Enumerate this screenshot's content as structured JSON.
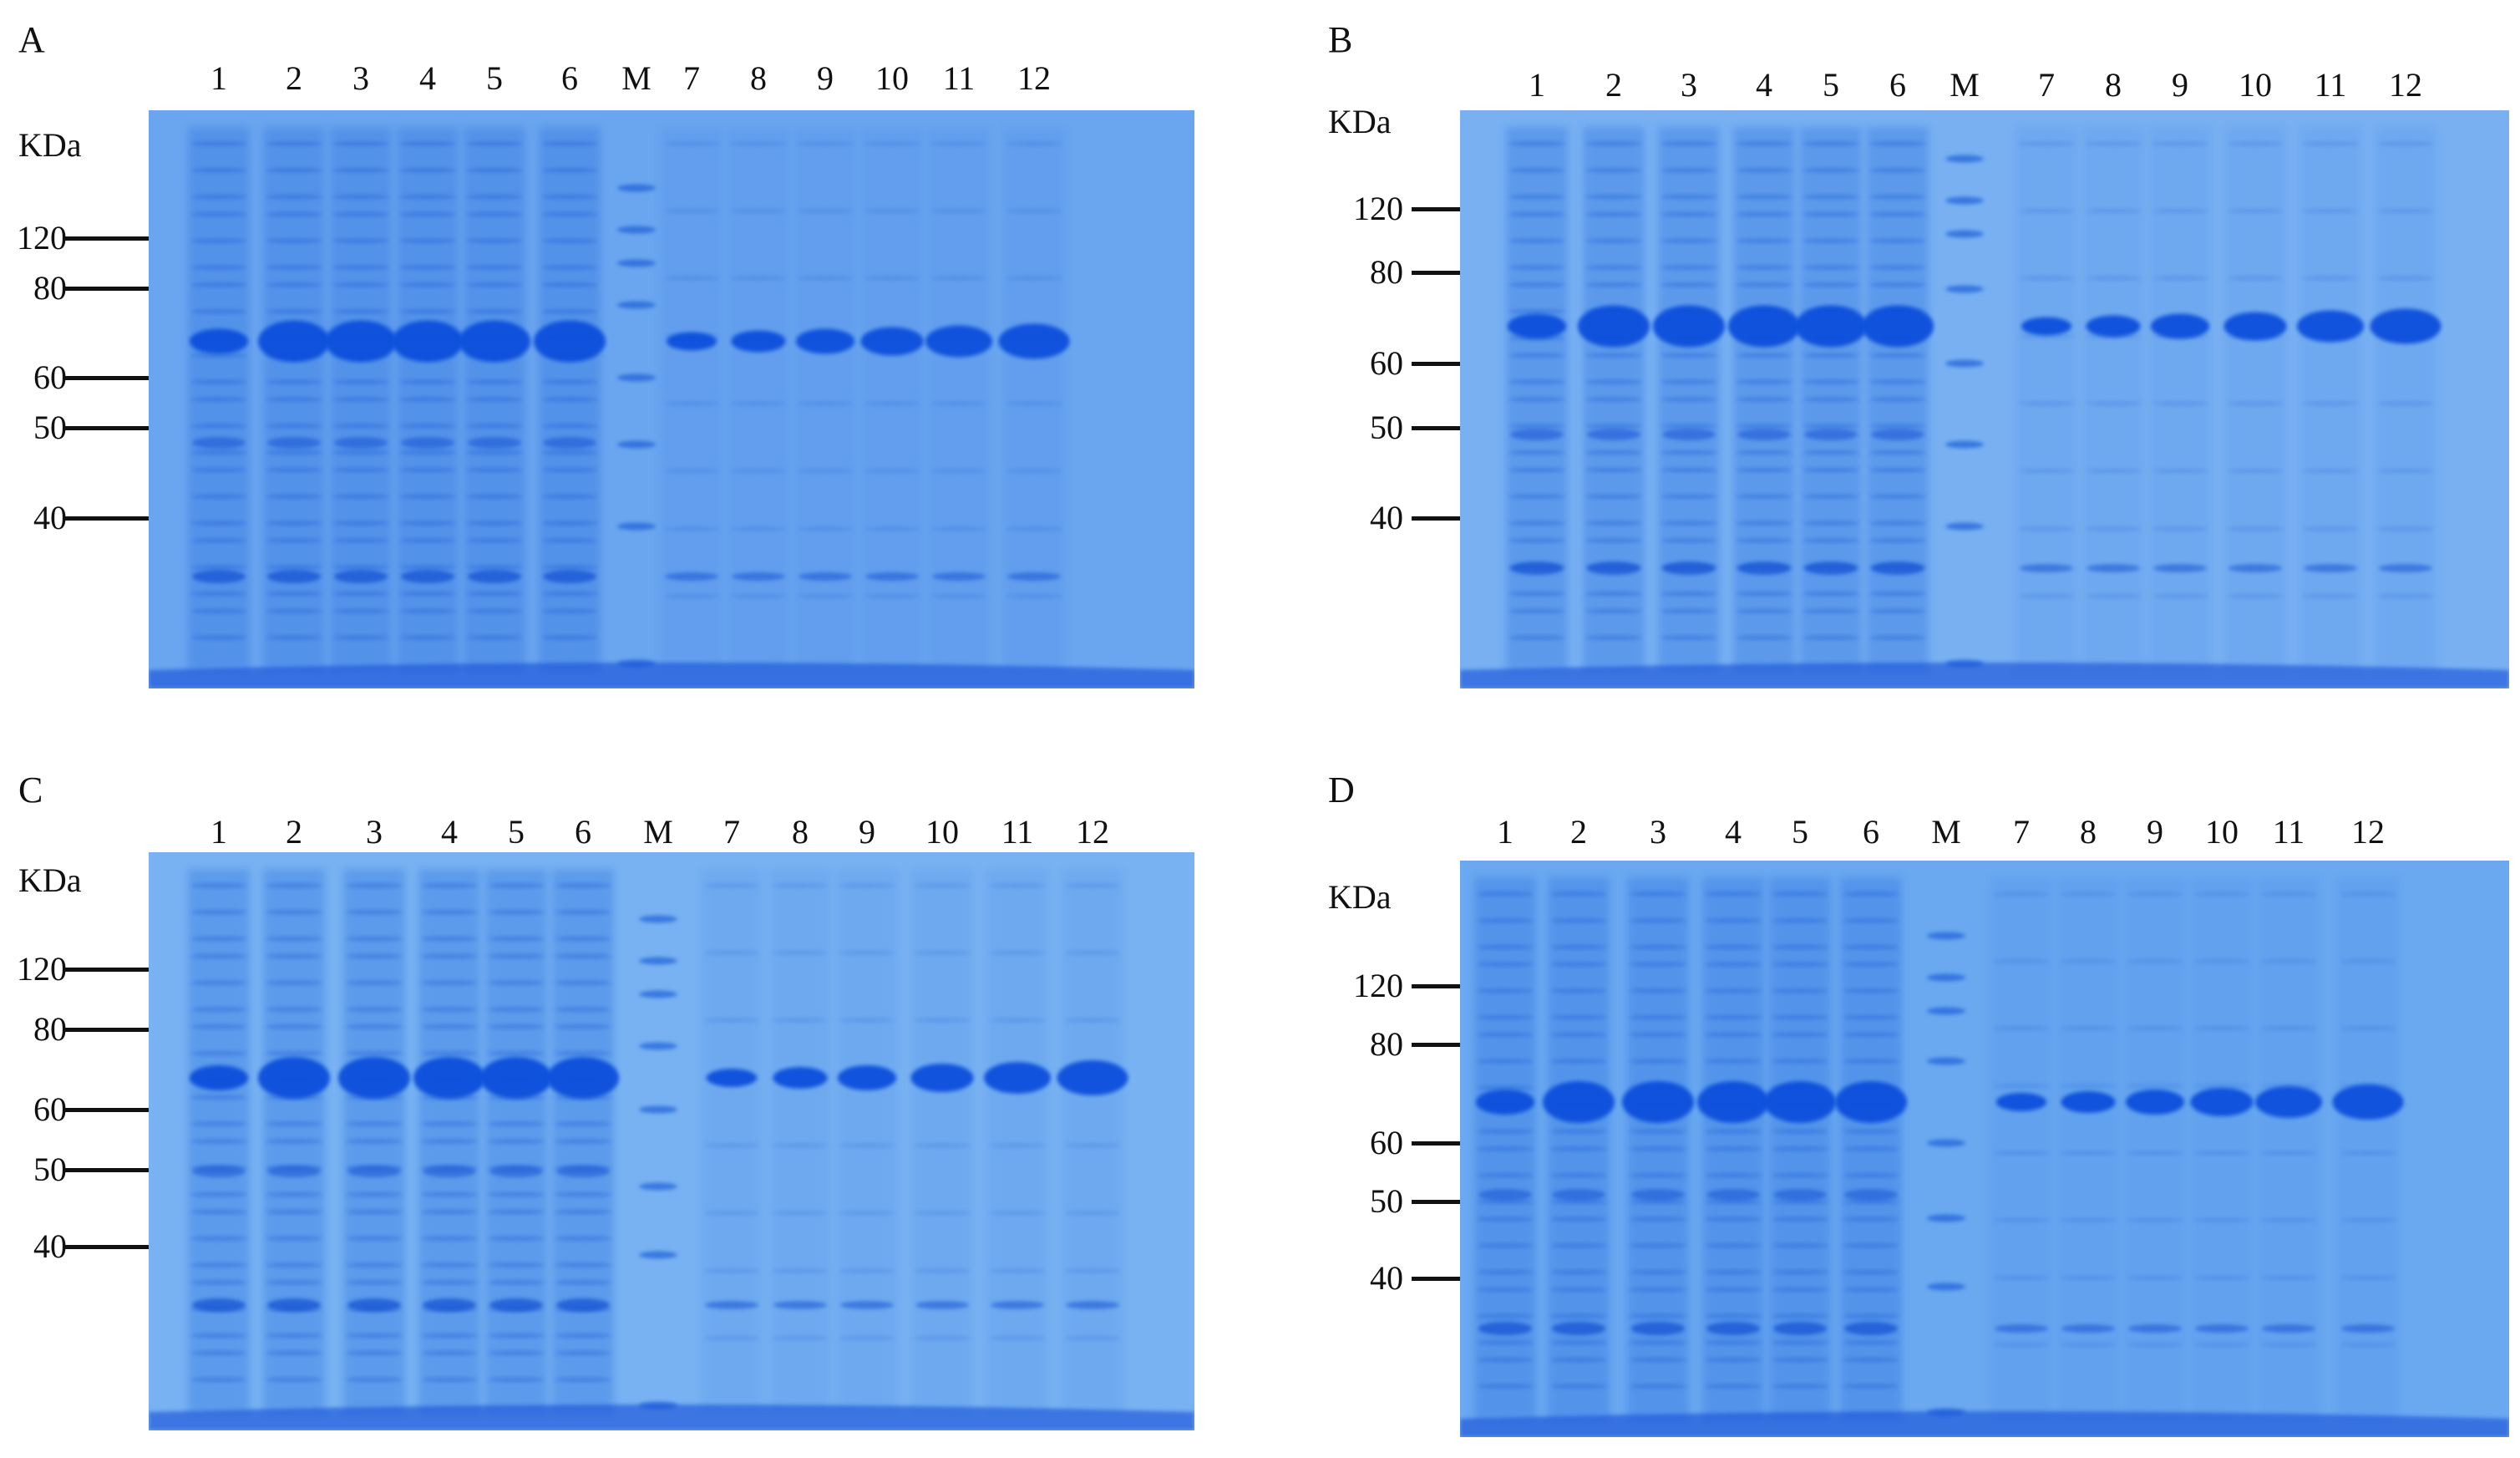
{
  "kda_unit": "KDa",
  "marker_sizes": [
    "120",
    "80",
    "60",
    "50",
    "40"
  ],
  "lane_labels": [
    "1",
    "2",
    "3",
    "4",
    "5",
    "6",
    "M",
    "7",
    "8",
    "9",
    "10",
    "11",
    "12"
  ],
  "panels": [
    {
      "label": "A",
      "gel_color": "#6aa5ef"
    },
    {
      "label": "B",
      "gel_color": "#78b0f2"
    },
    {
      "label": "C",
      "gel_color": "#78b2f2"
    },
    {
      "label": "D",
      "gel_color": "#6aa8f0"
    }
  ]
}
